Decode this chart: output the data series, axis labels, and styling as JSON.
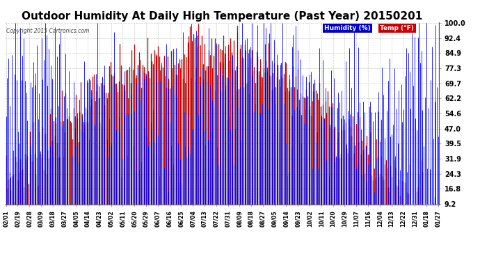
{
  "title": "Outdoor Humidity At Daily High Temperature (Past Year) 20150201",
  "copyright": "Copyright 2015 Cartronics.com",
  "legend_humidity": "Humidity (%)",
  "legend_temp": "Temp (°F)",
  "yticks": [
    9.2,
    16.8,
    24.3,
    31.9,
    39.5,
    47.0,
    54.6,
    62.2,
    69.7,
    77.3,
    84.9,
    92.4,
    100.0
  ],
  "xtick_labels": [
    "02/01",
    "02/19",
    "02/28",
    "03/09",
    "03/18",
    "03/27",
    "04/05",
    "04/14",
    "04/23",
    "05/02",
    "05/11",
    "05/20",
    "05/29",
    "06/07",
    "06/16",
    "06/25",
    "07/04",
    "07/13",
    "07/22",
    "07/31",
    "08/09",
    "08/18",
    "08/27",
    "09/05",
    "09/14",
    "09/23",
    "10/02",
    "10/11",
    "10/20",
    "10/29",
    "11/07",
    "11/16",
    "12/04",
    "12/13",
    "12/22",
    "12/31",
    "01/18",
    "01/27"
  ],
  "background_color": "#ffffff",
  "plot_bg_color": "#ffffff",
  "grid_color": "#cccccc",
  "humidity_color": "#0000ff",
  "temp_color": "#ff0000",
  "black_color": "#000000",
  "title_fontsize": 11,
  "legend_bg_humidity": "#0000cc",
  "legend_bg_temp": "#cc0000",
  "ylim_min": 9.2,
  "ylim_max": 100.0,
  "n_days": 365
}
